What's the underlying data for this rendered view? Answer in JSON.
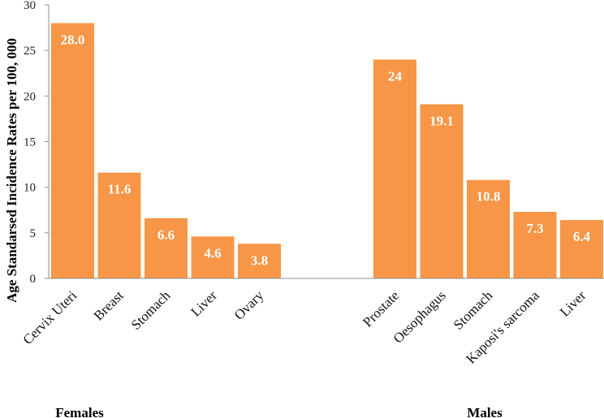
{
  "chart_data": {
    "type": "bar",
    "ylabel": "Age Standarsed Incidence Rates per 100, 000",
    "ylim": [
      0,
      30
    ],
    "yticks": [
      0,
      5,
      10,
      15,
      20,
      25,
      30
    ],
    "grid": false,
    "bar_color": "#F79646",
    "groups": [
      {
        "name": "Females",
        "categories": [
          "Cervix Uteri",
          "Breast",
          "Stomach",
          "Liver",
          "Ovary"
        ],
        "values": [
          28.0,
          11.6,
          6.6,
          4.6,
          3.8
        ],
        "labels": [
          "28.0",
          "11.6",
          "6.6",
          "4.6",
          "3.8"
        ]
      },
      {
        "name": "Males",
        "categories": [
          "Prostate",
          "Oesophagus",
          "Stomach",
          "Kaposi's sarcoma",
          "Liver"
        ],
        "values": [
          24,
          19.1,
          10.8,
          7.3,
          6.4
        ],
        "labels": [
          "24",
          "19.1",
          "10.8",
          "7.3",
          "6.4"
        ]
      }
    ]
  }
}
